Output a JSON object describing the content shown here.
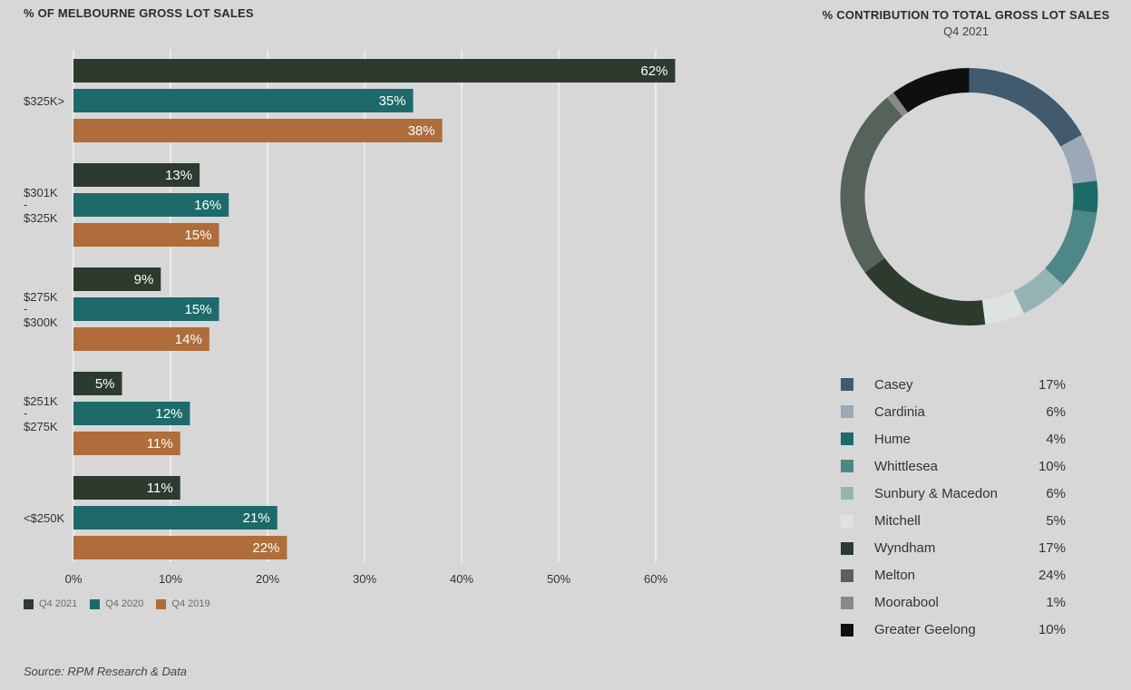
{
  "chart_data": [
    {
      "type": "bar",
      "orientation": "horizontal",
      "title": "% OF MELBOURNE GROSS LOT SALES",
      "categories": [
        {
          "lines": [
            "$325K>"
          ]
        },
        {
          "lines": [
            "$301K",
            "-",
            "$325K"
          ]
        },
        {
          "lines": [
            "$275K",
            "-",
            "$300K"
          ]
        },
        {
          "lines": [
            "$251K",
            "-",
            "$275K"
          ]
        },
        {
          "lines": [
            "<$250K"
          ]
        }
      ],
      "series": [
        {
          "name": "Q4 2021",
          "color": "#2d3a2e",
          "values": [
            62,
            13,
            9,
            5,
            11
          ],
          "labels": [
            "62%",
            "13%",
            "9%",
            "5%",
            "11%"
          ]
        },
        {
          "name": "Q4 2020",
          "color": "#1e6a6b",
          "values": [
            35,
            16,
            15,
            12,
            21
          ],
          "labels": [
            "35%",
            "16%",
            "15%",
            "12%",
            "21%"
          ]
        },
        {
          "name": "Q4 2019",
          "color": "#ae6d3a",
          "values": [
            38,
            15,
            14,
            11,
            22
          ],
          "labels": [
            "38%",
            "15%",
            "14%",
            "11%",
            "22%"
          ]
        }
      ],
      "xlim": [
        0,
        65
      ],
      "xticks": [
        0,
        10,
        20,
        30,
        40,
        50,
        60
      ],
      "xtick_labels": [
        "0%",
        "10%",
        "20%",
        "30%",
        "40%",
        "50%",
        "60%"
      ],
      "grid": true,
      "legend_position": "bottom-left"
    },
    {
      "type": "pie",
      "donut": true,
      "title": "% CONTRIBUTION TO TOTAL GROSS LOT SALES",
      "subtitle": "Q4 2021",
      "slices": [
        {
          "name": "Casey",
          "value": 17,
          "label": "17%",
          "color": "#415a6e"
        },
        {
          "name": "Cardinia",
          "value": 6,
          "label": "6%",
          "color": "#9aa9b5"
        },
        {
          "name": "Hume",
          "value": 4,
          "label": "4%",
          "color": "#1e6a6b"
        },
        {
          "name": "Whittlesea",
          "value": 10,
          "label": "10%",
          "color": "#4d8787"
        },
        {
          "name": "Sunbury & Macedon",
          "value": 6,
          "label": "6%",
          "color": "#94b4b4"
        },
        {
          "name": "Mitchell",
          "value": 5,
          "label": "5%",
          "color": "#dde3e3"
        },
        {
          "name": "Wyndham",
          "value": 17,
          "label": "17%",
          "color": "#2d3a2e"
        },
        {
          "name": "Melton",
          "value": 24,
          "label": "24%",
          "color": "#56635a"
        },
        {
          "name": "Moorabool",
          "value": 1,
          "label": "1%",
          "color": "#868b86"
        },
        {
          "name": "Greater Geelong",
          "value": 10,
          "label": "10%",
          "color": "#0f0f0f"
        }
      ]
    }
  ],
  "source": "Source: RPM Research & Data"
}
